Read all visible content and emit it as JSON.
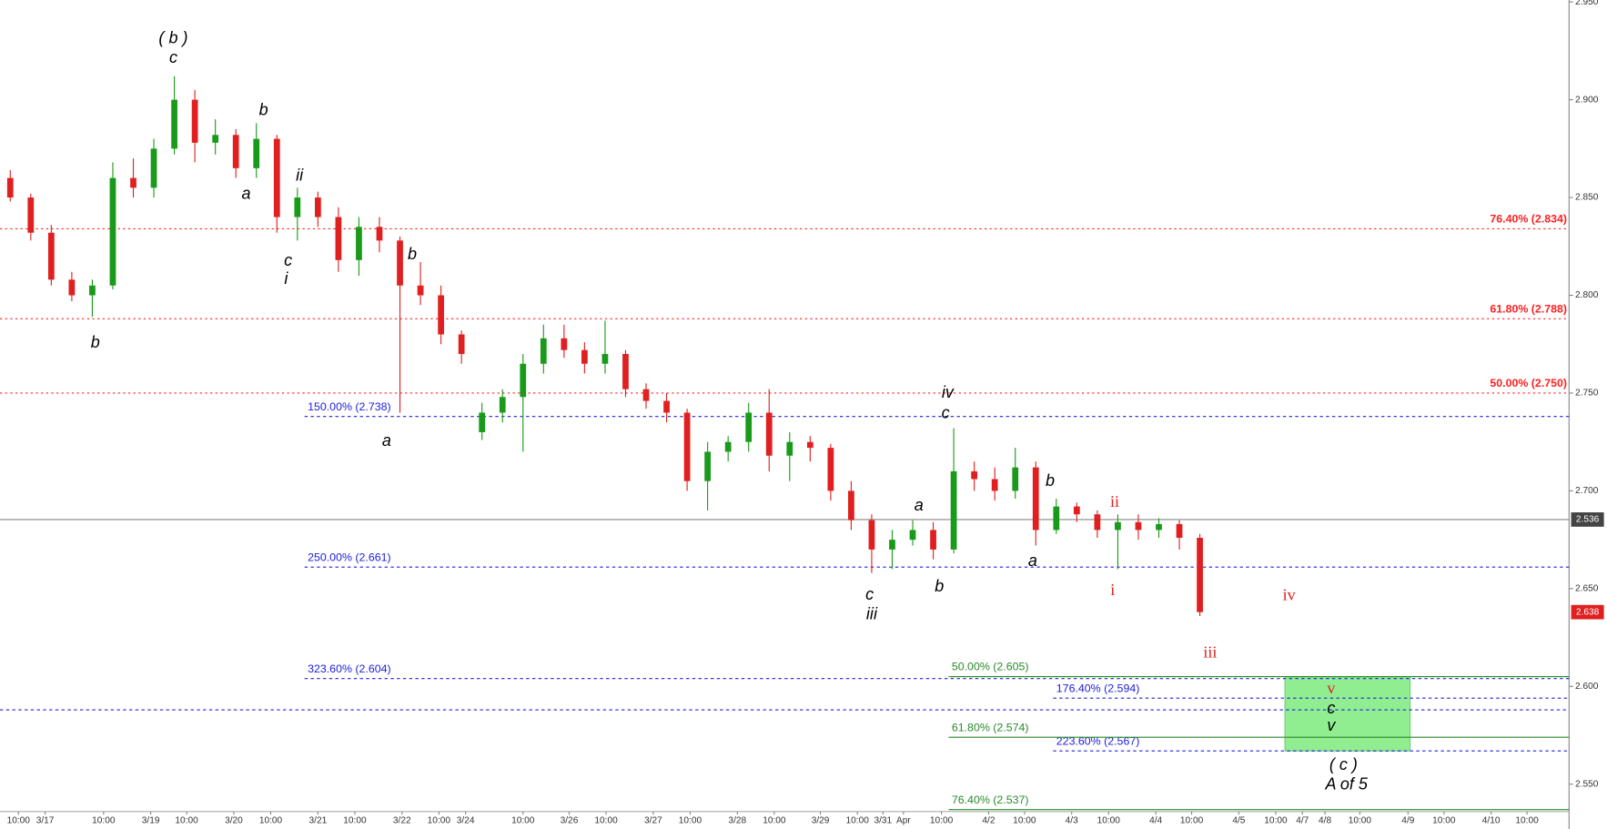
{
  "chart_data": {
    "type": "candlestick",
    "up_color": "#1a9a1a",
    "down_color": "#e02020",
    "x": [
      1,
      3,
      5,
      7,
      9,
      11,
      13,
      15,
      17,
      19,
      21,
      23,
      25,
      27,
      29,
      31,
      33,
      35,
      37,
      39,
      41,
      43,
      45,
      47,
      49,
      51,
      53,
      55,
      57,
      59,
      61,
      63,
      65,
      67,
      69,
      71,
      73,
      75,
      77,
      79,
      81,
      83,
      85,
      87,
      89,
      91,
      93,
      95,
      97,
      99,
      101,
      103,
      105,
      107,
      109,
      111,
      113,
      115,
      117
    ],
    "open": [
      2.86,
      2.85,
      2.832,
      2.808,
      2.8,
      2.805,
      2.86,
      2.855,
      2.875,
      2.9,
      2.878,
      2.882,
      2.865,
      2.88,
      2.84,
      2.85,
      2.84,
      2.818,
      2.835,
      2.828,
      2.805,
      2.8,
      2.78,
      2.73,
      2.74,
      2.748,
      2.765,
      2.778,
      2.772,
      2.765,
      2.77,
      2.752,
      2.746,
      2.74,
      2.705,
      2.72,
      2.725,
      2.74,
      2.718,
      2.725,
      2.722,
      2.7,
      2.685,
      2.67,
      2.675,
      2.68,
      2.67,
      2.71,
      2.706,
      2.7,
      2.712,
      2.68,
      2.692,
      2.688,
      2.68,
      2.684,
      2.68,
      2.683,
      2.676
    ],
    "high": [
      2.864,
      2.852,
      2.836,
      2.812,
      2.808,
      2.868,
      2.87,
      2.88,
      2.912,
      2.905,
      2.89,
      2.885,
      2.888,
      2.882,
      2.855,
      2.853,
      2.845,
      2.84,
      2.84,
      2.83,
      2.817,
      2.805,
      2.782,
      2.745,
      2.752,
      2.77,
      2.785,
      2.785,
      2.776,
      2.787,
      2.772,
      2.755,
      2.75,
      2.742,
      2.725,
      2.728,
      2.745,
      2.752,
      2.73,
      2.728,
      2.724,
      2.705,
      2.688,
      2.68,
      2.685,
      2.684,
      2.732,
      2.715,
      2.712,
      2.722,
      2.715,
      2.696,
      2.694,
      2.69,
      2.688,
      2.688,
      2.686,
      2.685,
      2.678
    ],
    "low": [
      2.848,
      2.828,
      2.805,
      2.797,
      2.789,
      2.803,
      2.85,
      2.85,
      2.872,
      2.868,
      2.872,
      2.86,
      2.86,
      2.832,
      2.828,
      2.835,
      2.812,
      2.81,
      2.822,
      2.74,
      2.795,
      2.775,
      2.765,
      2.726,
      2.735,
      2.72,
      2.76,
      2.768,
      2.76,
      2.76,
      2.748,
      2.742,
      2.735,
      2.7,
      2.69,
      2.715,
      2.72,
      2.71,
      2.705,
      2.715,
      2.695,
      2.68,
      2.658,
      2.66,
      2.672,
      2.665,
      2.668,
      2.7,
      2.695,
      2.696,
      2.672,
      2.678,
      2.684,
      2.676,
      2.66,
      2.675,
      2.676,
      2.67,
      2.636
    ],
    "close": [
      2.85,
      2.832,
      2.808,
      2.8,
      2.805,
      2.86,
      2.855,
      2.875,
      2.9,
      2.878,
      2.882,
      2.865,
      2.88,
      2.84,
      2.85,
      2.84,
      2.818,
      2.835,
      2.828,
      2.805,
      2.8,
      2.78,
      2.77,
      2.74,
      2.748,
      2.765,
      2.778,
      2.772,
      2.765,
      2.77,
      2.752,
      2.746,
      2.74,
      2.705,
      2.72,
      2.725,
      2.74,
      2.718,
      2.725,
      2.722,
      2.7,
      2.685,
      2.67,
      2.675,
      2.68,
      2.67,
      2.71,
      2.706,
      2.7,
      2.712,
      2.68,
      2.692,
      2.688,
      2.68,
      2.684,
      2.68,
      2.683,
      2.676,
      2.638
    ],
    "xlim": [
      0,
      153
    ],
    "xticks": [
      {
        "value": 1.8,
        "label": "10:00"
      },
      {
        "value": 4.4,
        "label": "3/17"
      },
      {
        "value": 10.1,
        "label": "10:00"
      },
      {
        "value": 14.7,
        "label": "3/19"
      },
      {
        "value": 18.2,
        "label": "10:00"
      },
      {
        "value": 22.8,
        "label": "3/20"
      },
      {
        "value": 26.4,
        "label": "10:00"
      },
      {
        "value": 31,
        "label": "3/21"
      },
      {
        "value": 34.6,
        "label": "10:00"
      },
      {
        "value": 39.2,
        "label": "3/22"
      },
      {
        "value": 42.8,
        "label": "10:00"
      },
      {
        "value": 45.4,
        "label": "3/24"
      },
      {
        "value": 51,
        "label": "10:00"
      },
      {
        "value": 55.5,
        "label": "3/26"
      },
      {
        "value": 59.1,
        "label": "10:00"
      },
      {
        "value": 63.7,
        "label": "3/27"
      },
      {
        "value": 67.3,
        "label": "10:00"
      },
      {
        "value": 71.9,
        "label": "3/28"
      },
      {
        "value": 75.5,
        "label": "10:00"
      },
      {
        "value": 80,
        "label": "3/29"
      },
      {
        "value": 83.6,
        "label": "10:00"
      },
      {
        "value": 86.1,
        "label": "3/31"
      },
      {
        "value": 88.1,
        "label": "Apr"
      },
      {
        "value": 91.8,
        "label": "10:00"
      },
      {
        "value": 96.4,
        "label": "4/2"
      },
      {
        "value": 99.9,
        "label": "10:00"
      },
      {
        "value": 104.5,
        "label": "4/3"
      },
      {
        "value": 108.1,
        "label": "10:00"
      },
      {
        "value": 112.7,
        "label": "4/4"
      },
      {
        "value": 116.2,
        "label": "10:00"
      },
      {
        "value": 120.8,
        "label": "4/5"
      },
      {
        "value": 124.4,
        "label": "10:00"
      },
      {
        "value": 127,
        "label": "4/7"
      },
      {
        "value": 129.2,
        "label": "4/8"
      },
      {
        "value": 132.6,
        "label": "10:00"
      },
      {
        "value": 137.3,
        "label": "4/9"
      },
      {
        "value": 140.8,
        "label": "10:00"
      },
      {
        "value": 145.4,
        "label": "4/10"
      },
      {
        "value": 148.9,
        "label": "10:00"
      }
    ],
    "ylim": [
      2.536,
      2.951
    ],
    "yticks": [
      {
        "value": 2.55,
        "label": "2.550"
      },
      {
        "value": 2.6,
        "label": "2.600"
      },
      {
        "value": 2.65,
        "label": "2.650"
      },
      {
        "value": 2.7,
        "label": "2.700"
      },
      {
        "value": 2.75,
        "label": "2.750"
      },
      {
        "value": 2.8,
        "label": "2.800"
      },
      {
        "value": 2.85,
        "label": "2.850"
      },
      {
        "value": 2.9,
        "label": "2.900"
      },
      {
        "value": 2.95,
        "label": "2.950"
      }
    ],
    "retracements": {
      "color": "#ff2020",
      "levels": [
        {
          "label": "76.40% (2.834)",
          "value": 2.834
        },
        {
          "label": "61.80% (2.788)",
          "value": 2.788
        },
        {
          "label": "50.00% (2.750)",
          "value": 2.75
        }
      ]
    },
    "extensions": {
      "color": "#2020e0",
      "levels": [
        {
          "label": "150.00% (2.738)",
          "value": 2.738
        },
        {
          "label": "250.00% (2.661)",
          "value": 2.661
        },
        {
          "label": "323.60% (2.604)",
          "value": 2.604
        },
        {
          "label": "176.40% (2.594)",
          "value": 2.594
        },
        {
          "label": "223.60% (2.567)",
          "value": 2.567
        }
      ],
      "extra_lines": [
        2.588
      ]
    },
    "projections": {
      "color": "#2a8a2a",
      "levels": [
        {
          "label": "50.00% (2.605)",
          "value": 2.605
        },
        {
          "label": "61.80% (2.574)",
          "value": 2.574
        },
        {
          "label": "76.40% (2.537)",
          "value": 2.537
        }
      ]
    },
    "target_zone": {
      "x": [
        125.3,
        137.5
      ],
      "values": [
        2.605,
        2.567
      ],
      "color": "#90ee90"
    },
    "last_price": 2.638,
    "line_tag": "2.536",
    "wave_labels": [
      {
        "text": "( b )",
        "color": "#000"
      },
      {
        "text": "c",
        "color": "#000"
      },
      {
        "text": "b",
        "color": "#000"
      },
      {
        "text": "a",
        "color": "#000"
      },
      {
        "text": "ii",
        "color": "#000"
      },
      {
        "text": "c",
        "color": "#000"
      },
      {
        "text": "i",
        "color": "#000"
      },
      {
        "text": "b",
        "color": "#000"
      },
      {
        "text": "b",
        "color": "#000"
      },
      {
        "text": "a",
        "color": "#000"
      },
      {
        "text": "c",
        "color": "#000"
      },
      {
        "text": "iii",
        "color": "#000"
      },
      {
        "text": "a",
        "color": "#000"
      },
      {
        "text": "b",
        "color": "#000"
      },
      {
        "text": "iv",
        "color": "#000"
      },
      {
        "text": "c",
        "color": "#000"
      },
      {
        "text": "b",
        "color": "#000"
      },
      {
        "text": "a",
        "color": "#000"
      },
      {
        "text": "ii",
        "color": "#e02020"
      },
      {
        "text": "i",
        "color": "#e02020"
      },
      {
        "text": "iv",
        "color": "#e02020"
      },
      {
        "text": "iii",
        "color": "#e02020"
      },
      {
        "text": "v",
        "color": "#e02020"
      },
      {
        "text": "c",
        "color": "#000"
      },
      {
        "text": "v",
        "color": "#000"
      },
      {
        "text": "( c )",
        "color": "#000"
      },
      {
        "text": "A of 5",
        "color": "#000"
      }
    ]
  }
}
